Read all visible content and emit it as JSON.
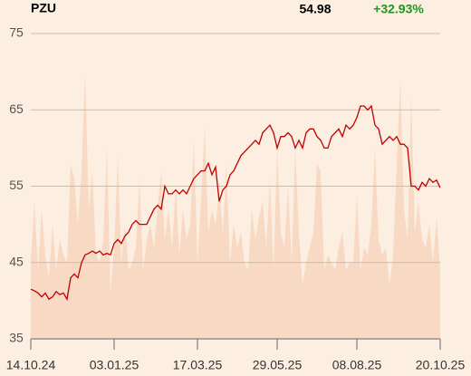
{
  "chart_data": {
    "type": "line",
    "title": "PZU",
    "last_price": "54.98",
    "change": "+32.93%",
    "change_color": "#1a9a1a",
    "categories": [
      "14.10.24",
      null,
      null,
      null,
      null,
      null,
      null,
      null,
      null,
      null,
      null,
      null,
      null,
      null,
      null,
      null,
      null,
      null,
      null,
      null,
      null,
      null,
      null,
      "03.01.25",
      null,
      null,
      null,
      null,
      null,
      null,
      null,
      null,
      null,
      null,
      null,
      null,
      null,
      null,
      null,
      null,
      null,
      null,
      null,
      null,
      null,
      null,
      "17.03.25",
      null,
      null,
      null,
      null,
      null,
      null,
      null,
      null,
      null,
      null,
      null,
      null,
      null,
      null,
      null,
      null,
      null,
      null,
      null,
      null,
      null,
      "29.05.25",
      null,
      null,
      null,
      null,
      null,
      null,
      null,
      null,
      null,
      null,
      null,
      null,
      null,
      null,
      null,
      null,
      null,
      null,
      null,
      null,
      null,
      "08.08.25",
      null,
      null,
      null,
      null,
      null,
      null,
      null,
      null,
      null,
      null,
      null,
      null,
      null,
      null,
      null,
      null,
      null,
      null,
      null,
      null,
      null,
      null,
      "20.10.25"
    ],
    "series": [
      {
        "kind": "area",
        "color": "#f8dac4",
        "values": [
          45,
          53,
          44,
          52,
          46,
          43,
          50,
          44,
          48,
          46,
          45,
          58,
          56,
          50,
          57,
          70,
          52,
          57,
          46,
          45,
          48,
          60,
          41,
          47,
          59,
          45,
          50,
          44,
          45,
          47,
          56,
          44,
          48,
          50,
          47,
          52,
          57,
          48,
          52,
          47,
          55,
          46,
          52,
          48,
          50,
          61,
          45,
          53,
          63,
          49,
          52,
          50,
          55,
          49,
          58,
          45,
          50,
          47,
          49,
          45,
          44,
          52,
          48,
          51,
          53,
          47,
          56,
          44,
          60,
          49,
          47,
          55,
          45,
          60,
          49,
          42,
          45,
          47,
          49,
          58,
          57,
          44,
          46,
          45,
          44,
          47,
          49,
          44,
          45,
          45,
          54,
          44,
          47,
          46,
          50,
          60,
          48,
          46,
          47,
          42,
          46,
          58,
          69,
          52,
          48,
          67,
          49,
          53,
          48,
          47,
          50,
          45,
          51,
          44
        ]
      },
      {
        "kind": "line",
        "color": "#c00000",
        "values": [
          41.5,
          41.3,
          41,
          40.5,
          41,
          40.2,
          40.5,
          41.2,
          40.8,
          41,
          40.2,
          43,
          43.5,
          43,
          45,
          46,
          46.2,
          46.5,
          46.2,
          46.5,
          46,
          46.2,
          46,
          47.5,
          48,
          47.5,
          48.5,
          49,
          50,
          50.5,
          50,
          50,
          50,
          51,
          52,
          52.5,
          52,
          55,
          54,
          54,
          54.5,
          54,
          54.5,
          54,
          55,
          56,
          56.5,
          57,
          57,
          58,
          56.5,
          57.5,
          53,
          54.5,
          55,
          56.5,
          57,
          58,
          59,
          59.5,
          60,
          60.5,
          61,
          60.5,
          62,
          62.5,
          63,
          62,
          60,
          61.5,
          61.5,
          62,
          61.5,
          60,
          61,
          60,
          62,
          62.5,
          62.5,
          61.5,
          61,
          60,
          60,
          61.5,
          62,
          62.5,
          61.5,
          63,
          62.5,
          63,
          64,
          65.5,
          65.5,
          65,
          65.5,
          63,
          62.5,
          60.5,
          61,
          61.5,
          61,
          61.5,
          60.5,
          60.5,
          60,
          55,
          55,
          54.5,
          55.5,
          55,
          56,
          55.5,
          55.8,
          54.8
        ]
      }
    ],
    "ylim": [
      35,
      75
    ],
    "yticks": [
      35,
      45,
      55,
      65,
      75
    ],
    "grid": true
  }
}
